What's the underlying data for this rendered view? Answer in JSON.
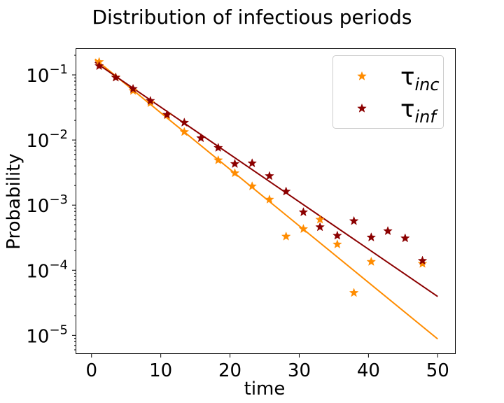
{
  "chart_data": {
    "type": "scatter",
    "title": "Distribution of infectious periods",
    "xlabel": "time",
    "ylabel": "Probability",
    "xlim": [
      -2.2,
      52.5
    ],
    "ylim": [
      5.3e-06,
      0.25
    ],
    "yscale": "log",
    "grid": false,
    "legend_position": "top-right",
    "xticks": [
      {
        "value": 0,
        "label": "0"
      },
      {
        "value": 10,
        "label": "10"
      },
      {
        "value": 20,
        "label": "20"
      },
      {
        "value": 30,
        "label": "30"
      },
      {
        "value": 40,
        "label": "40"
      },
      {
        "value": 50,
        "label": "50"
      }
    ],
    "yticks": [
      {
        "value": 0.1,
        "base": "10",
        "exp": "−1"
      },
      {
        "value": 0.01,
        "base": "10",
        "exp": "−2"
      },
      {
        "value": 0.001,
        "base": "10",
        "exp": "−3"
      },
      {
        "value": 0.0001,
        "base": "10",
        "exp": "−4"
      },
      {
        "value": 1e-05,
        "base": "10",
        "exp": "−5"
      }
    ],
    "series": [
      {
        "name": "τ",
        "subscript": "inc",
        "key": "inc",
        "color": "#ff8c00",
        "marker": "star",
        "points": [
          [
            1.1,
            0.158
          ],
          [
            3.5,
            0.092
          ],
          [
            6.0,
            0.057
          ],
          [
            8.5,
            0.037
          ],
          [
            10.9,
            0.024
          ],
          [
            13.4,
            0.0133
          ],
          [
            18.3,
            0.0049
          ],
          [
            20.7,
            0.0031
          ],
          [
            23.2,
            0.00195
          ],
          [
            25.7,
            0.00122
          ],
          [
            28.1,
            0.00033
          ],
          [
            30.6,
            0.00043
          ],
          [
            33.0,
            0.0006
          ],
          [
            35.5,
            0.00025
          ],
          [
            37.9,
            4.5e-05
          ],
          [
            40.4,
            0.000135
          ],
          [
            47.8,
            0.000126
          ]
        ],
        "fit": {
          "x": [
            0.5,
            50.0
          ],
          "y": [
            0.175,
            8.8e-06
          ]
        }
      },
      {
        "name": "τ",
        "subscript": "inf",
        "key": "inf",
        "color": "#8b0000",
        "marker": "star",
        "points": [
          [
            1.1,
            0.137
          ],
          [
            3.5,
            0.091
          ],
          [
            6.0,
            0.061
          ],
          [
            8.5,
            0.04
          ],
          [
            10.9,
            0.0245
          ],
          [
            13.4,
            0.0185
          ],
          [
            15.8,
            0.0107
          ],
          [
            18.3,
            0.0076
          ],
          [
            20.7,
            0.0043
          ],
          [
            23.2,
            0.0044
          ],
          [
            25.7,
            0.0028
          ],
          [
            28.1,
            0.00162
          ],
          [
            30.6,
            0.00078
          ],
          [
            33.0,
            0.00046
          ],
          [
            35.5,
            0.00034
          ],
          [
            37.9,
            0.00057
          ],
          [
            40.4,
            0.00032
          ],
          [
            42.8,
            0.0004
          ],
          [
            45.3,
            0.00031
          ],
          [
            47.8,
            0.00014
          ]
        ],
        "fit": {
          "x": [
            0.5,
            50.0
          ],
          "y": [
            0.157,
            3.95e-05
          ]
        }
      }
    ]
  }
}
